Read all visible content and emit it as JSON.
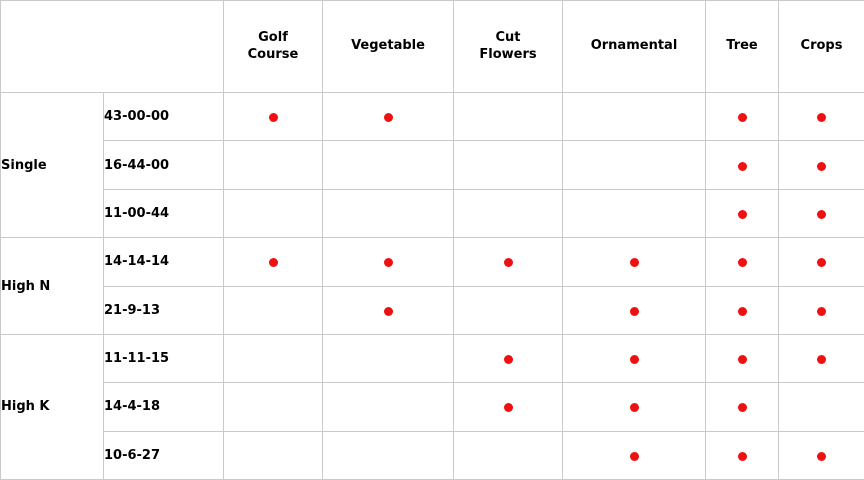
{
  "chart_data": {
    "type": "table",
    "title": "",
    "columns": [
      "Golf\nCourse",
      "Vegetable",
      "Cut\nFlowers",
      "Ornamental",
      "Tree",
      "Crops"
    ],
    "row_groups": [
      {
        "group": "Single",
        "rows": [
          {
            "formulation": "43-00-00",
            "marks": [
              1,
              1,
              0,
              0,
              1,
              1
            ]
          },
          {
            "formulation": "16-44-00",
            "marks": [
              0,
              0,
              0,
              0,
              1,
              1
            ]
          },
          {
            "formulation": "11-00-44",
            "marks": [
              0,
              0,
              0,
              0,
              1,
              1
            ]
          }
        ]
      },
      {
        "group": "High N",
        "rows": [
          {
            "formulation": "14-14-14",
            "marks": [
              1,
              1,
              1,
              1,
              1,
              1
            ]
          },
          {
            "formulation": "21-9-13",
            "marks": [
              0,
              1,
              0,
              1,
              1,
              1
            ]
          }
        ]
      },
      {
        "group": "High K",
        "rows": [
          {
            "formulation": "11-11-15",
            "marks": [
              0,
              0,
              1,
              1,
              1,
              1
            ]
          },
          {
            "formulation": "14-4-18",
            "marks": [
              0,
              0,
              1,
              1,
              1,
              0
            ]
          },
          {
            "formulation": "10-6-27",
            "marks": [
              0,
              0,
              0,
              1,
              1,
              1
            ]
          }
        ]
      }
    ],
    "mark_symbol": "red-dot",
    "legend_position": "none",
    "grid": true,
    "colors": {
      "dot": "#ee1111",
      "border": "#c9c9c9",
      "text": "#000000",
      "background": "#ffffff"
    }
  }
}
